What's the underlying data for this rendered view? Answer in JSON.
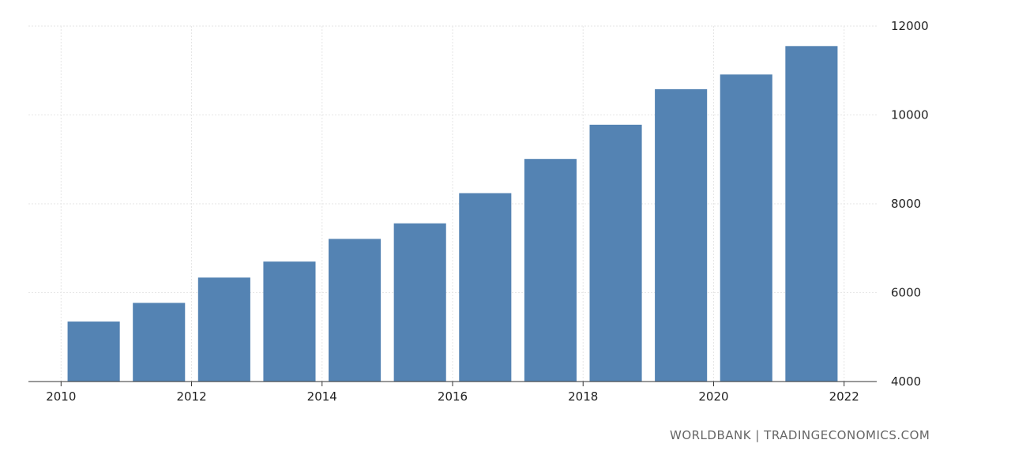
{
  "chart_data": {
    "type": "bar",
    "title": "",
    "xlabel": "",
    "ylabel": "",
    "x": [
      2010,
      2011,
      2012,
      2013,
      2014,
      2015,
      2016,
      2017,
      2018,
      2019,
      2020,
      2021
    ],
    "values": [
      5350,
      5770,
      6340,
      6700,
      7210,
      7560,
      8240,
      9010,
      9780,
      10580,
      10910,
      11550
    ],
    "ylim": [
      4000,
      12000
    ],
    "xlim": [
      2009.5,
      2022.5
    ],
    "y_ticks": [
      4000,
      6000,
      8000,
      10000,
      12000
    ],
    "y_tick_labels": [
      "4000",
      "6000",
      "8000",
      "10000",
      "12000"
    ],
    "x_ticks": [
      2010,
      2012,
      2014,
      2016,
      2018,
      2020,
      2022
    ],
    "x_tick_labels": [
      "2010",
      "2012",
      "2014",
      "2016",
      "2018",
      "2020",
      "2022"
    ],
    "y_axis_position": "right",
    "grid": true,
    "legend": "none",
    "bar_color": "#5483b3",
    "grid_color": "#e6e6e6",
    "axis_color": "#333333"
  },
  "footer": {
    "source": "WORLDBANK | TRADINGECONOMICS.COM"
  }
}
